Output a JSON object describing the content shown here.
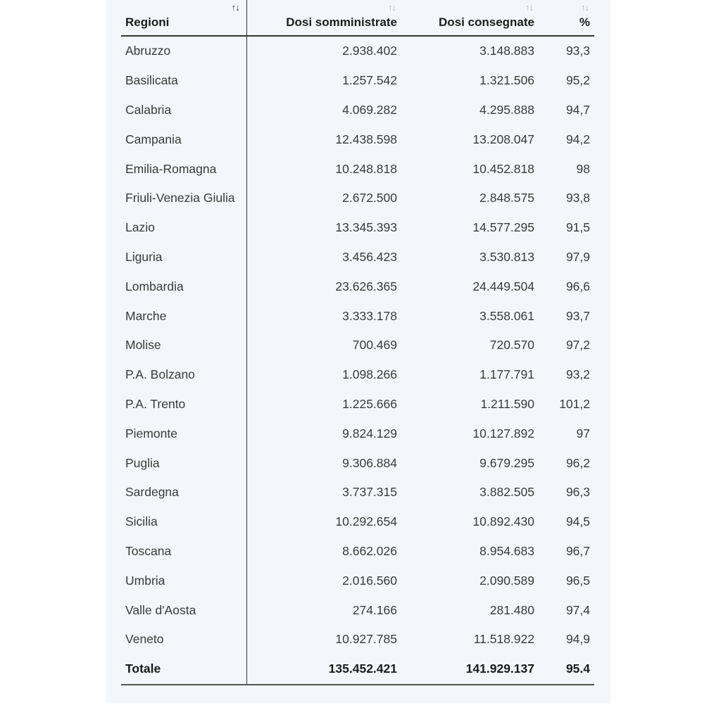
{
  "table": {
    "columns": [
      {
        "label": "Regioni",
        "sort": "↑↓"
      },
      {
        "label": "Dosi somministrate",
        "sort": "↑↓"
      },
      {
        "label": "Dosi consegnate",
        "sort": "↑↓"
      },
      {
        "label": "%",
        "sort": "↑↓"
      }
    ],
    "rows": [
      {
        "region": "Abruzzo",
        "somministrate": "2.938.402",
        "consegnate": "3.148.883",
        "pct": "93,3"
      },
      {
        "region": "Basilicata",
        "somministrate": "1.257.542",
        "consegnate": "1.321.506",
        "pct": "95,2"
      },
      {
        "region": "Calabria",
        "somministrate": "4.069.282",
        "consegnate": "4.295.888",
        "pct": "94,7"
      },
      {
        "region": "Campania",
        "somministrate": "12.438.598",
        "consegnate": "13.208.047",
        "pct": "94,2"
      },
      {
        "region": "Emilia-Romagna",
        "somministrate": "10.248.818",
        "consegnate": "10.452.818",
        "pct": "98"
      },
      {
        "region": "Friuli-Venezia Giulia",
        "somministrate": "2.672.500",
        "consegnate": "2.848.575",
        "pct": "93,8"
      },
      {
        "region": "Lazio",
        "somministrate": "13.345.393",
        "consegnate": "14.577.295",
        "pct": "91,5"
      },
      {
        "region": "Liguria",
        "somministrate": "3.456.423",
        "consegnate": "3.530.813",
        "pct": "97,9"
      },
      {
        "region": "Lombardia",
        "somministrate": "23.626.365",
        "consegnate": "24.449.504",
        "pct": "96,6"
      },
      {
        "region": "Marche",
        "somministrate": "3.333.178",
        "consegnate": "3.558.061",
        "pct": "93,7"
      },
      {
        "region": "Molise",
        "somministrate": "700.469",
        "consegnate": "720.570",
        "pct": "97,2"
      },
      {
        "region": "P.A. Bolzano",
        "somministrate": "1.098.266",
        "consegnate": "1.177.791",
        "pct": "93,2"
      },
      {
        "region": "P.A. Trento",
        "somministrate": "1.225.666",
        "consegnate": "1.211.590",
        "pct": "101,2"
      },
      {
        "region": "Piemonte",
        "somministrate": "9.824.129",
        "consegnate": "10.127.892",
        "pct": "97"
      },
      {
        "region": "Puglia",
        "somministrate": "9.306.884",
        "consegnate": "9.679.295",
        "pct": "96,2"
      },
      {
        "region": "Sardegna",
        "somministrate": "3.737.315",
        "consegnate": "3.882.505",
        "pct": "96,3"
      },
      {
        "region": "Sicilia",
        "somministrate": "10.292.654",
        "consegnate": "10.892.430",
        "pct": "94,5"
      },
      {
        "region": "Toscana",
        "somministrate": "8.662.026",
        "consegnate": "8.954.683",
        "pct": "96,7"
      },
      {
        "region": "Umbria",
        "somministrate": "2.016.560",
        "consegnate": "2.090.589",
        "pct": "96,5"
      },
      {
        "region": "Valle d'Aosta",
        "somministrate": "274.166",
        "consegnate": "281.480",
        "pct": "97,4"
      },
      {
        "region": "Veneto",
        "somministrate": "10.927.785",
        "consegnate": "11.518.922",
        "pct": "94,9"
      }
    ],
    "total": {
      "region": "Totale",
      "somministrate": "135.452.421",
      "consegnate": "141.929.137",
      "pct": "95.4"
    }
  }
}
